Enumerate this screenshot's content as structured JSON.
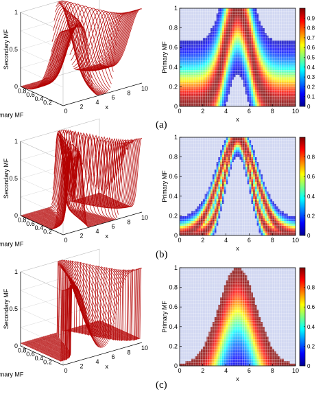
{
  "panels": [
    {
      "id": "a",
      "caption": "(a)"
    },
    {
      "id": "b",
      "caption": "(b)"
    },
    {
      "id": "c",
      "caption": "(c)"
    }
  ],
  "chart_data": [
    {
      "type": "surface3d",
      "panel": "a",
      "zlabel": "Secondary MF",
      "ylabel": "Primary MF",
      "xlabel": "x",
      "xlim": [
        0,
        10
      ],
      "ylim": [
        0,
        1
      ],
      "zlim": [
        0,
        1
      ],
      "xticks": [
        "0",
        "2",
        "4",
        "6",
        "8",
        "10"
      ],
      "yticks": [
        "0.2",
        "0.4",
        "0.6",
        "0.8"
      ],
      "zticks": [
        "0",
        "0.5",
        "1"
      ],
      "secondary_shape": "broad",
      "mean": 5
    },
    {
      "type": "heatmap",
      "panel": "a",
      "xlabel": "x",
      "ylabel": "Primary MF",
      "xlim": [
        0,
        10
      ],
      "ylim": [
        0,
        1
      ],
      "xticks": [
        "0",
        "2",
        "4",
        "6",
        "8",
        "10"
      ],
      "yticks": [
        "0",
        "0.2",
        "0.4",
        "0.6",
        "0.8",
        "1"
      ],
      "colorbar_ticks": [
        "0",
        "0.1",
        "0.2",
        "0.3",
        "0.4",
        "0.5",
        "0.6",
        "0.7",
        "0.8",
        "0.9"
      ],
      "colorbar_range": [
        0,
        1
      ],
      "secondary_shape": "broad",
      "mean": 5
    },
    {
      "type": "surface3d",
      "panel": "b",
      "zlabel": "Secondary MF",
      "ylabel": "Primary MF",
      "xlabel": "x",
      "xlim": [
        0,
        10
      ],
      "ylim": [
        0,
        1
      ],
      "zlim": [
        0,
        1
      ],
      "xticks": [
        "0",
        "2",
        "4",
        "6",
        "8",
        "10"
      ],
      "yticks": [
        "0.2",
        "0.4",
        "0.6",
        "0.8"
      ],
      "zticks": [
        "0",
        "0.5",
        "1"
      ],
      "secondary_shape": "narrow",
      "mean": 5
    },
    {
      "type": "heatmap",
      "panel": "b",
      "xlabel": "x",
      "ylabel": "Primary MF",
      "xlim": [
        0,
        10
      ],
      "ylim": [
        0,
        1
      ],
      "xticks": [
        "0",
        "2",
        "4",
        "6",
        "8",
        "10"
      ],
      "yticks": [
        "0",
        "0.2",
        "0.4",
        "0.6",
        "0.8",
        "1"
      ],
      "colorbar_ticks": [
        "0",
        "0.2",
        "0.4",
        "0.6",
        "0.8"
      ],
      "colorbar_range": [
        0,
        1
      ],
      "secondary_shape": "narrow",
      "mean": 5
    },
    {
      "type": "surface3d",
      "panel": "c",
      "zlabel": "Secondary MF",
      "ylabel": "Primary MF",
      "xlabel": "x",
      "xlim": [
        0,
        10
      ],
      "ylim": [
        0,
        1
      ],
      "zlim": [
        0,
        1
      ],
      "xticks": [
        "0",
        "2",
        "4",
        "6",
        "8",
        "10"
      ],
      "yticks": [
        "0.2",
        "0.4",
        "0.6",
        "0.8"
      ],
      "zticks": [
        "0",
        "0.5",
        "1"
      ],
      "secondary_shape": "skewed",
      "mean": 5
    },
    {
      "type": "heatmap",
      "panel": "c",
      "xlabel": "x",
      "ylabel": "Primary MF",
      "xlim": [
        0,
        10
      ],
      "ylim": [
        0,
        1
      ],
      "xticks": [
        "0",
        "2",
        "4",
        "6",
        "8",
        "10"
      ],
      "yticks": [
        "0",
        "0.2",
        "0.4",
        "0.6",
        "0.8",
        "1"
      ],
      "colorbar_ticks": [
        "0",
        "0.2",
        "0.4",
        "0.6",
        "0.8"
      ],
      "colorbar_range": [
        0,
        1
      ],
      "secondary_shape": "skewed",
      "mean": 5
    }
  ]
}
